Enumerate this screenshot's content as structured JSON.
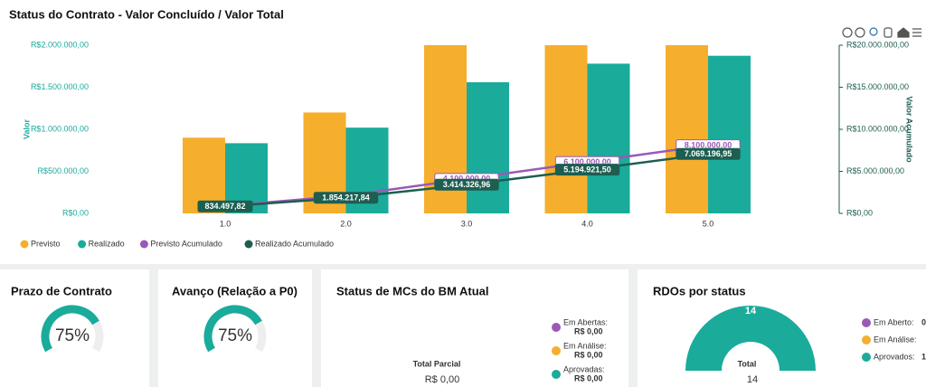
{
  "chart_data": [
    {
      "type": "bar",
      "title": "Status do Contrato - Valor Concluído / Valor Total",
      "ylabel": "Valor",
      "y2label": "Valor Acumulado",
      "categories": [
        "1.0",
        "2.0",
        "3.0",
        "4.0",
        "5.0"
      ],
      "ylim": [
        0,
        2000000
      ],
      "yticks": [
        {
          "value": 0,
          "label": "R$0,00"
        },
        {
          "value": 500000,
          "label": "R$500.000,00"
        },
        {
          "value": 1000000,
          "label": "R$1.000.000,00"
        },
        {
          "value": 1500000,
          "label": "R$1.500.000,00"
        },
        {
          "value": 2000000,
          "label": "R$2.000.000,00"
        }
      ],
      "y2lim": [
        0,
        20000000
      ],
      "y2ticks": [
        {
          "value": 0,
          "label": "R$0,00"
        },
        {
          "value": 5000000,
          "label": "R$5.000.000,00"
        },
        {
          "value": 10000000,
          "label": "R$10.000.000,00"
        },
        {
          "value": 15000000,
          "label": "R$15.000.000,00"
        },
        {
          "value": 20000000,
          "label": "R$20.000.000,00"
        }
      ],
      "series": [
        {
          "name": "Previsto",
          "type": "bar",
          "color": "#f6ae2d",
          "values": [
            900000,
            1200000,
            2000000,
            2000000,
            2000000
          ]
        },
        {
          "name": "Realizado",
          "type": "bar",
          "color": "#1aab9b",
          "values": [
            834497.82,
            1019720.02,
            1560109.12,
            1780594.54,
            1874275.45
          ]
        },
        {
          "name": "Previsto Acumulado",
          "type": "line",
          "axis": "y2",
          "color": "#9b59b6",
          "values": [
            900000,
            2100000,
            4100000,
            6100000,
            8100000
          ],
          "value_labels": [
            null,
            null,
            "4.100.000,00",
            "6.100.000,00",
            "8.100.000,00"
          ]
        },
        {
          "name": "Realizado Acumulado",
          "type": "line",
          "axis": "y2",
          "color": "#1d5e51",
          "values": [
            834497.82,
            1854217.84,
            3414326.96,
            5194921.5,
            7069196.95
          ],
          "value_labels": [
            "834.497,82",
            "1.854.217,84",
            "3.414.326,96",
            "5.194.921,50",
            "7.069.196,95"
          ]
        }
      ]
    },
    {
      "type": "gauge",
      "title": "Prazo de Contrato",
      "value": 75,
      "value_label": "75%",
      "ylim": [
        0,
        100
      ],
      "color": "#1aab9b"
    },
    {
      "type": "gauge",
      "title": "Avanço (Relação a P0)",
      "value": 75,
      "value_label": "75%",
      "ylim": [
        0,
        100
      ],
      "color": "#1aab9b"
    },
    {
      "type": "donut",
      "title": "Status de MCs do BM Atual",
      "categories": [
        "Em Abertas:",
        "Em Análise:",
        "Aprovadas:"
      ],
      "colors": [
        "#9b59b6",
        "#f6ae2d",
        "#1aab9b"
      ],
      "values": [
        0,
        0,
        0
      ],
      "value_labels": [
        "R$ 0,00",
        "R$ 0,00",
        "R$ 0,00"
      ],
      "total_title": "Total Parcial",
      "total": 0,
      "total_label": "R$ 0,00"
    },
    {
      "type": "donut",
      "title": "RDOs por status",
      "categories": [
        "Em Aberto:",
        "Em Análise:",
        "Aprovados:"
      ],
      "colors": [
        "#9b59b6",
        "#f6ae2d",
        "#1aab9b"
      ],
      "values": [
        0,
        0,
        14
      ],
      "total_title": "Total",
      "total": 14
    }
  ]
}
